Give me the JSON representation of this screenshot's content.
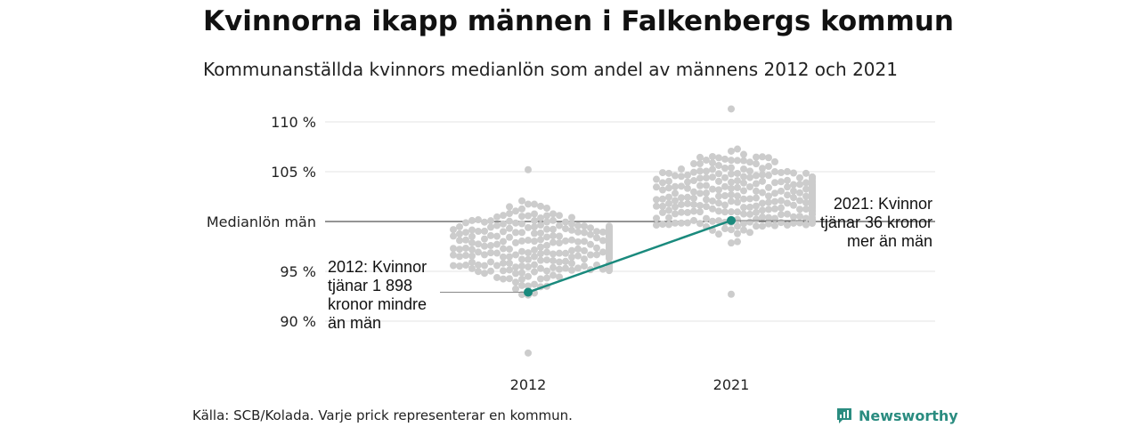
{
  "title": "Kvinnorna ikapp männen i Falkenbergs kommun",
  "subtitle": "Kommunanställda kvinnors medianlön som andel av männens 2012 och 2021",
  "source": "Källa: SCB/Kolada. Varje prick representerar en kommun.",
  "brand": {
    "name": "Newsworthy",
    "icon": "bar-chart-badge-icon",
    "color": "#2a8c80"
  },
  "colors": {
    "dots": "#cccccc",
    "highlight": "#1a8a7d",
    "grid": "#e3e3e3",
    "reference": "#555555"
  },
  "chart_data": {
    "type": "scatter",
    "categories": [
      "2012",
      "2021"
    ],
    "y_ticks": [
      {
        "value": 110,
        "label": "110 %"
      },
      {
        "value": 105,
        "label": "105 %"
      },
      {
        "value": 100,
        "label": "Medianlön män"
      },
      {
        "value": 95,
        "label": "95 %"
      },
      {
        "value": 90,
        "label": "90 %"
      }
    ],
    "ylim": [
      86,
      112
    ],
    "reference_line": {
      "value": 100,
      "label": "Medianlön män"
    },
    "highlight": {
      "name": "Falkenbergs kommun",
      "points": [
        {
          "x": "2012",
          "y": 92.9
        },
        {
          "x": "2021",
          "y": 100.1
        }
      ]
    },
    "distribution": [
      {
        "x": "2012",
        "min": 86.8,
        "max": 105.2,
        "center": 97.5
      },
      {
        "x": "2021",
        "min": 92.7,
        "max": 111.3,
        "center": 102.5
      }
    ],
    "annotations": [
      {
        "x": "2012",
        "lines": [
          "2012: Kvinnor",
          "tjänar 1 898",
          "kronor mindre",
          "än män"
        ]
      },
      {
        "x": "2021",
        "lines": [
          "2021: Kvinnor",
          "tjänar 36 kronor",
          "mer än män"
        ]
      }
    ]
  }
}
